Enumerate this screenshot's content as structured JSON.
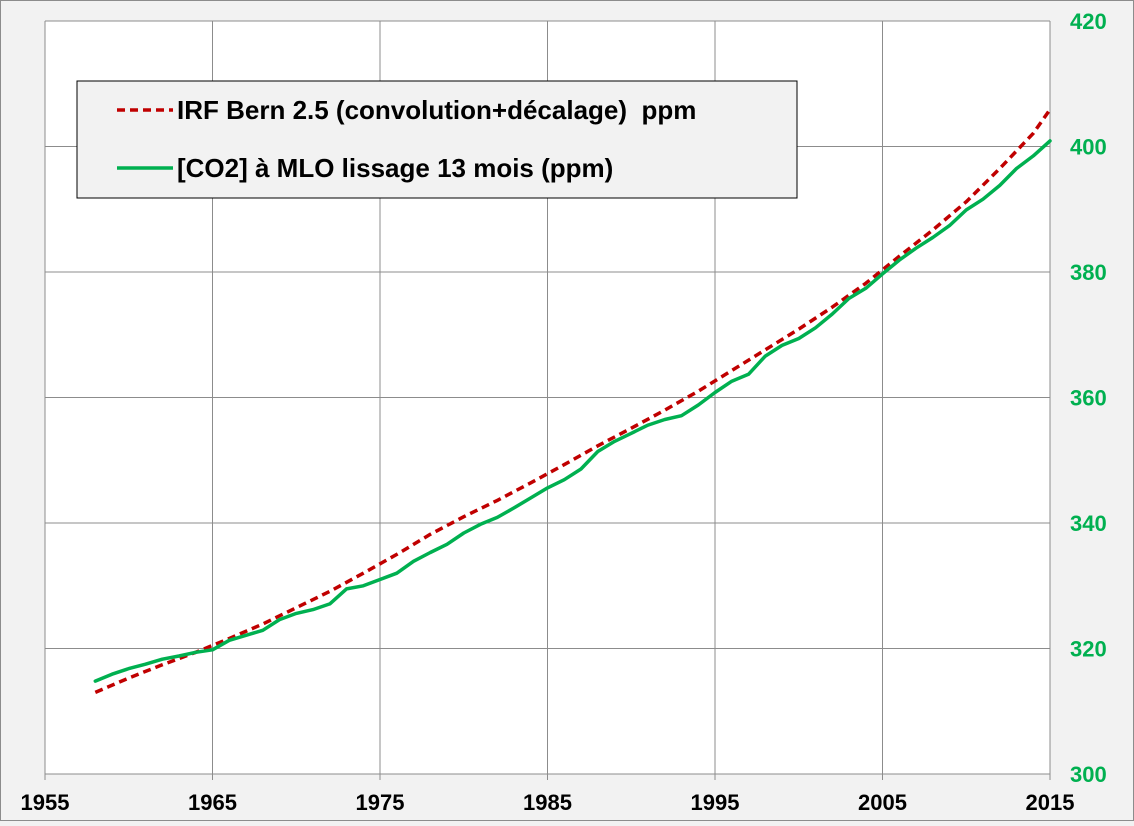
{
  "chart_data": {
    "type": "line",
    "title": "",
    "xlabel": "",
    "ylabel": "",
    "xlim": [
      1955,
      2015
    ],
    "ylim": [
      300,
      420
    ],
    "x_ticks": [
      1955,
      1965,
      1975,
      1985,
      1995,
      2005,
      2015
    ],
    "y_ticks": [
      300,
      320,
      340,
      360,
      380,
      400,
      420
    ],
    "y_axis_side": "right",
    "grid": true,
    "legend_position": "top-left",
    "colors": {
      "y_tick_labels": "#00b050",
      "x_tick_labels": "#000000",
      "plot_background": "#ffffff",
      "figure_background": "#f2f2f2"
    },
    "series": [
      {
        "name": "IRF Bern 2.5 (convolution+décalage)  ppm",
        "color": "#c00000",
        "style": "dashed",
        "x": [
          1958,
          1960,
          1962,
          1964,
          1966,
          1968,
          1970,
          1972,
          1974,
          1976,
          1978,
          1980,
          1982,
          1984,
          1986,
          1988,
          1990,
          1992,
          1994,
          1996,
          1998,
          2000,
          2002,
          2004,
          2006,
          2008,
          2010,
          2012,
          2014,
          2015
        ],
        "values": [
          313.0,
          315.3,
          317.4,
          319.4,
          321.6,
          323.9,
          326.5,
          329.1,
          332.0,
          335.0,
          338.2,
          341.0,
          343.6,
          346.4,
          349.3,
          352.3,
          355.1,
          358.0,
          361.0,
          364.3,
          367.6,
          370.9,
          374.4,
          378.2,
          382.5,
          386.7,
          391.2,
          396.5,
          402.1,
          405.9
        ]
      },
      {
        "name": "[CO2] à MLO lissage 13 mois (ppm)",
        "color": "#00b050",
        "style": "solid",
        "x": [
          1958,
          1959,
          1960,
          1961,
          1962,
          1963,
          1964,
          1965,
          1966,
          1967,
          1968,
          1969,
          1970,
          1971,
          1972,
          1973,
          1974,
          1975,
          1976,
          1977,
          1978,
          1979,
          1980,
          1981,
          1982,
          1983,
          1984,
          1985,
          1986,
          1987,
          1988,
          1989,
          1990,
          1991,
          1992,
          1993,
          1994,
          1995,
          1996,
          1997,
          1998,
          1999,
          2000,
          2001,
          2002,
          2003,
          2004,
          2005,
          2006,
          2007,
          2008,
          2009,
          2010,
          2011,
          2012,
          2013,
          2014,
          2015
        ],
        "values": [
          314.8,
          315.9,
          316.8,
          317.5,
          318.3,
          318.8,
          319.4,
          319.8,
          321.3,
          322.1,
          322.9,
          324.6,
          325.6,
          326.2,
          327.1,
          329.5,
          330.0,
          331.0,
          332.0,
          333.9,
          335.3,
          336.6,
          338.4,
          339.8,
          340.9,
          342.4,
          344.0,
          345.6,
          346.9,
          348.6,
          351.4,
          353.0,
          354.3,
          355.6,
          356.5,
          357.1,
          358.8,
          360.8,
          362.6,
          363.7,
          366.6,
          368.3,
          369.4,
          371.1,
          373.3,
          375.8,
          377.4,
          379.7,
          381.9,
          383.8,
          385.5,
          387.4,
          389.9,
          391.6,
          393.8,
          396.5,
          398.5,
          400.9
        ]
      }
    ]
  }
}
